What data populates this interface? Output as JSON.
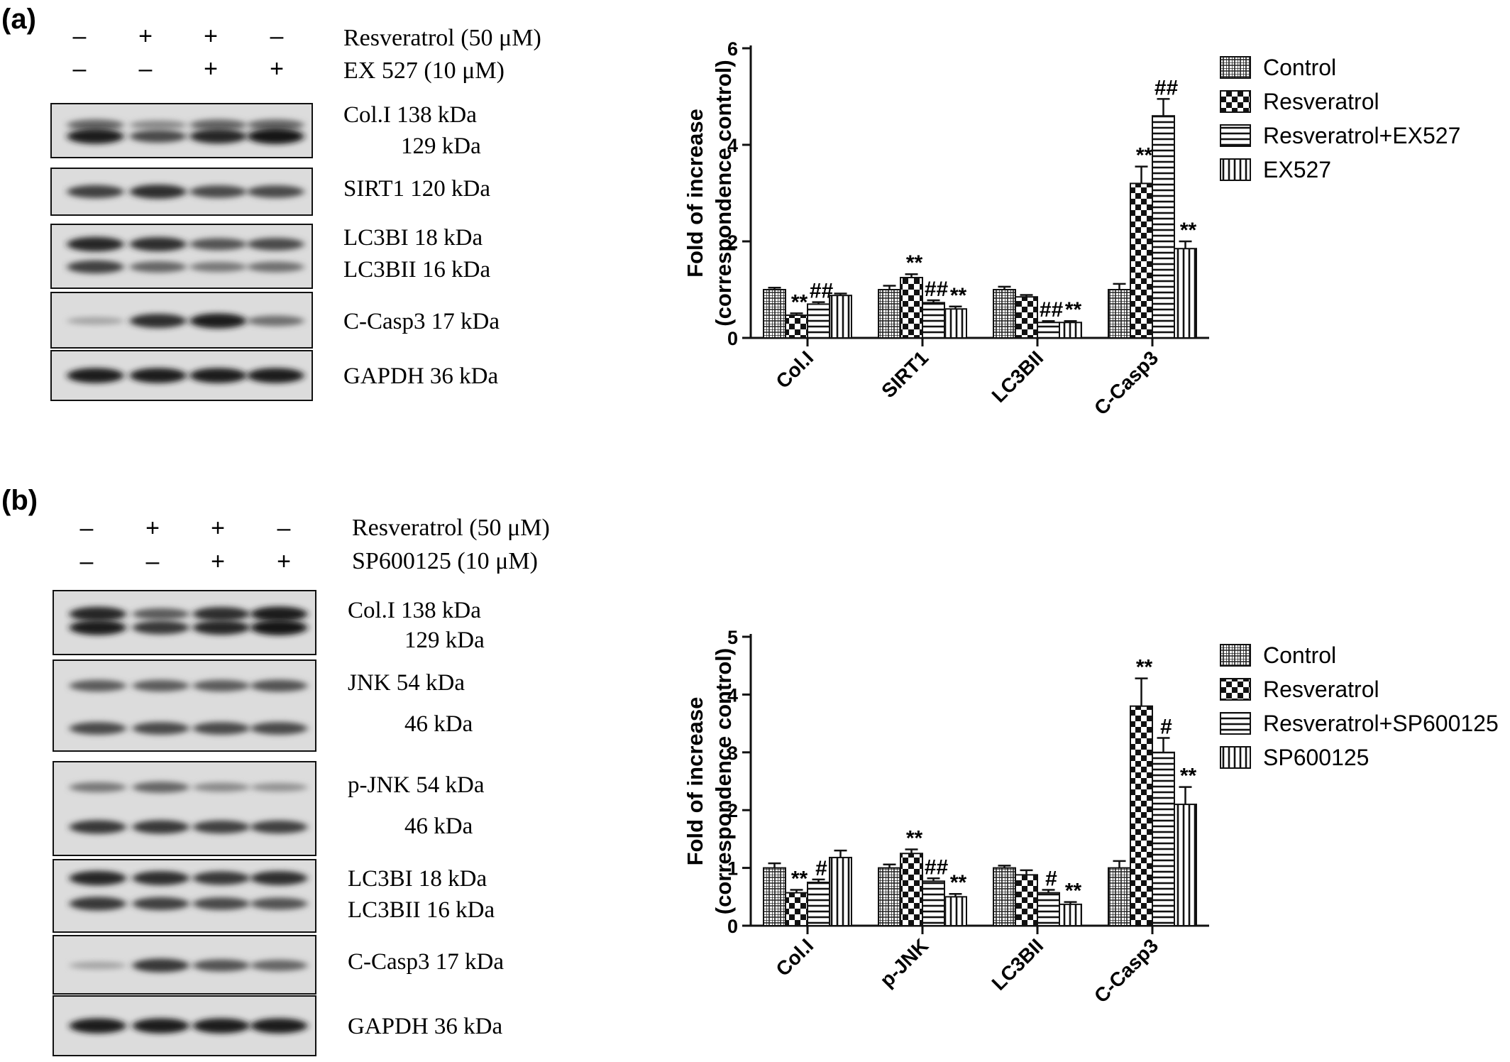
{
  "panels": [
    {
      "letter": "(a)",
      "conditions": [
        {
          "label": "Resveratrol (50 μM)",
          "signs": [
            "–",
            "+",
            "+",
            "–"
          ]
        },
        {
          "label": "EX 527 (10 μM)",
          "signs": [
            "–",
            "–",
            "+",
            "+"
          ]
        }
      ],
      "blots": [
        {
          "id": "col1",
          "labels": [
            "Col.I 138 kDa",
            "129 kDa"
          ],
          "bands": [
            [
              0.55,
              0.35,
              0.55,
              0.55
            ],
            [
              0.95,
              0.7,
              0.9,
              1.0
            ]
          ]
        },
        {
          "id": "sirt1",
          "labels": [
            "SIRT1 120 kDa"
          ],
          "bands": [
            [
              0.75,
              0.85,
              0.7,
              0.7
            ]
          ]
        },
        {
          "id": "lc3b",
          "labels": [
            "LC3BI 18 kDa",
            "LC3BII 16 kDa"
          ],
          "bands": [
            [
              0.9,
              0.85,
              0.65,
              0.7
            ],
            [
              0.75,
              0.55,
              0.45,
              0.5
            ]
          ]
        },
        {
          "id": "ccasp3",
          "labels": [
            "C-Casp3 17 kDa"
          ],
          "bands": [
            [
              0.2,
              0.85,
              0.95,
              0.5
            ]
          ]
        },
        {
          "id": "gapdh",
          "labels": [
            "GAPDH 36 kDa"
          ],
          "bands": [
            [
              0.95,
              0.95,
              0.95,
              0.95
            ]
          ]
        }
      ]
    },
    {
      "letter": "(b)",
      "conditions": [
        {
          "label": "Resveratrol (50 μM)",
          "signs": [
            "–",
            "+",
            "+",
            "–"
          ]
        },
        {
          "label": "SP600125 (10 μM)",
          "signs": [
            "–",
            "–",
            "+",
            "+"
          ]
        }
      ],
      "blots": [
        {
          "id": "col1",
          "labels": [
            "Col.I 138 kDa",
            "129 kDa"
          ],
          "bands": [
            [
              0.9,
              0.6,
              0.85,
              0.95
            ],
            [
              0.95,
              0.8,
              0.9,
              1.0
            ]
          ]
        },
        {
          "id": "jnk",
          "labels": [
            "JNK 54 kDa",
            "46 kDa"
          ],
          "bands": [
            [
              0.6,
              0.6,
              0.6,
              0.65
            ],
            [
              0.7,
              0.7,
              0.7,
              0.7
            ]
          ]
        },
        {
          "id": "pjnk",
          "labels": [
            "p-JNK 54 kDa",
            "46 kDa"
          ],
          "bands": [
            [
              0.45,
              0.55,
              0.35,
              0.3
            ],
            [
              0.8,
              0.8,
              0.75,
              0.75
            ]
          ]
        },
        {
          "id": "lc3b",
          "labels": [
            "LC3BI 18 kDa",
            "LC3BII 16 kDa"
          ],
          "bands": [
            [
              0.9,
              0.85,
              0.8,
              0.85
            ],
            [
              0.8,
              0.75,
              0.7,
              0.65
            ]
          ]
        },
        {
          "id": "ccasp3",
          "labels": [
            "C-Casp3 17 kDa"
          ],
          "bands": [
            [
              0.2,
              0.8,
              0.65,
              0.55
            ]
          ]
        },
        {
          "id": "gapdh",
          "labels": [
            "GAPDH 36 kDa"
          ],
          "bands": [
            [
              0.95,
              0.95,
              0.95,
              0.95
            ]
          ]
        }
      ]
    }
  ],
  "chart_data": [
    {
      "type": "bar",
      "ylabel_line1": "Fold of increase",
      "ylabel_line2": "(correspondence control)",
      "ylim": [
        0,
        6
      ],
      "yticks": [
        0,
        2,
        4,
        6
      ],
      "categories": [
        "Col.I",
        "SIRT1",
        "LC3BII",
        "C-Casp3"
      ],
      "series": [
        {
          "name": "Control",
          "pattern": "grid",
          "values": [
            1.0,
            1.0,
            1.0,
            1.0
          ],
          "errors": [
            0.04,
            0.08,
            0.06,
            0.12
          ],
          "sig": [
            "",
            "",
            "",
            ""
          ]
        },
        {
          "name": "Resveratrol",
          "pattern": "checker",
          "values": [
            0.47,
            1.25,
            0.85,
            3.2
          ],
          "errors": [
            0.04,
            0.07,
            0.04,
            0.35
          ],
          "sig": [
            "**",
            "**",
            "",
            "**"
          ]
        },
        {
          "name": "Resveratrol+EX527",
          "pattern": "hlines",
          "values": [
            0.7,
            0.73,
            0.32,
            4.6
          ],
          "errors": [
            0.04,
            0.05,
            0.03,
            0.35
          ],
          "sig": [
            "##",
            "##",
            "##",
            "##"
          ]
        },
        {
          "name": "EX527",
          "pattern": "vlines",
          "values": [
            0.88,
            0.6,
            0.32,
            1.85
          ],
          "errors": [
            0.04,
            0.05,
            0.03,
            0.15
          ],
          "sig": [
            "",
            "**",
            "**",
            "**"
          ]
        }
      ],
      "legend_position": "right"
    },
    {
      "type": "bar",
      "ylabel_line1": "Fold of increase",
      "ylabel_line2": "(correspondence control)",
      "ylim": [
        0,
        5
      ],
      "yticks": [
        0,
        1,
        2,
        3,
        4,
        5
      ],
      "categories": [
        "Col.I",
        "p-JNK",
        "LC3BII",
        "C-Casp3"
      ],
      "series": [
        {
          "name": "Control",
          "pattern": "grid",
          "values": [
            1.0,
            1.0,
            1.0,
            1.0
          ],
          "errors": [
            0.08,
            0.06,
            0.04,
            0.12
          ],
          "sig": [
            "",
            "",
            "",
            ""
          ]
        },
        {
          "name": "Resveratrol",
          "pattern": "checker",
          "values": [
            0.57,
            1.25,
            0.88,
            3.8
          ],
          "errors": [
            0.05,
            0.07,
            0.08,
            0.48
          ],
          "sig": [
            "**",
            "**",
            "",
            "**"
          ]
        },
        {
          "name": "Resveratrol+SP600125",
          "pattern": "hlines",
          "values": [
            0.75,
            0.77,
            0.57,
            3.0
          ],
          "errors": [
            0.05,
            0.05,
            0.05,
            0.25
          ],
          "sig": [
            "#",
            "##",
            "#",
            "#"
          ]
        },
        {
          "name": "SP600125",
          "pattern": "vlines",
          "values": [
            1.18,
            0.5,
            0.37,
            2.1
          ],
          "errors": [
            0.12,
            0.05,
            0.04,
            0.3
          ],
          "sig": [
            "",
            "**",
            "**",
            "**"
          ]
        }
      ],
      "legend_position": "right"
    }
  ]
}
